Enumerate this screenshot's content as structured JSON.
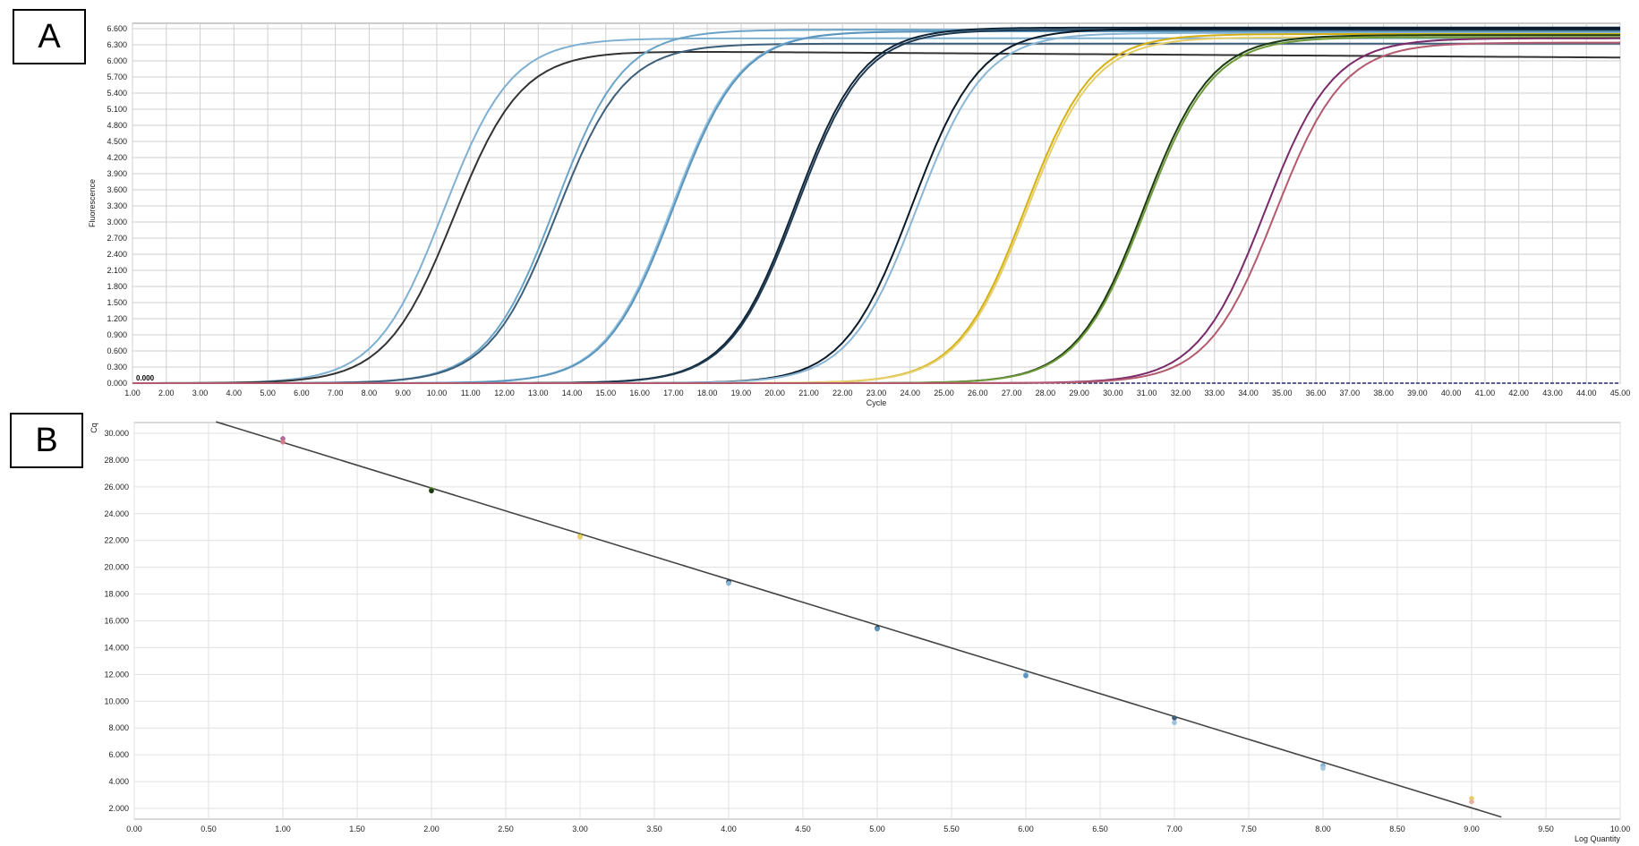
{
  "panels": {
    "a_label": "A",
    "b_label": "B"
  },
  "chart_data": [
    {
      "type": "line",
      "panel": "A",
      "xlabel": "Cycle",
      "ylabel": "Fluorescence",
      "xlim": [
        1,
        45
      ],
      "ylim": [
        0,
        6.7
      ],
      "x_ticks": [
        1,
        2,
        3,
        4,
        5,
        6,
        7,
        8,
        9,
        10,
        11,
        12,
        13,
        14,
        15,
        16,
        17,
        18,
        19,
        20,
        21,
        22,
        23,
        24,
        25,
        26,
        27,
        28,
        29,
        30,
        31,
        32,
        33,
        34,
        35,
        36,
        37,
        38,
        39,
        40,
        41,
        42,
        43,
        44,
        45
      ],
      "x_tick_labels": [
        "1.00",
        "2.00",
        "3.00",
        "4.00",
        "5.00",
        "6.00",
        "7.00",
        "8.00",
        "9.00",
        "10.00",
        "11.00",
        "12.00",
        "13.00",
        "14.00",
        "15.00",
        "16.00",
        "17.00",
        "18.00",
        "19.00",
        "20.00",
        "21.00",
        "22.00",
        "23.00",
        "24.00",
        "25.00",
        "26.00",
        "27.00",
        "28.00",
        "29.00",
        "30.00",
        "31.00",
        "32.00",
        "33.00",
        "34.00",
        "35.00",
        "36.00",
        "37.00",
        "38.00",
        "39.00",
        "40.00",
        "41.00",
        "42.00",
        "43.00",
        "44.00",
        "45.00"
      ],
      "y_ticks": [
        0,
        0.3,
        0.6,
        0.9,
        1.2,
        1.5,
        1.8,
        2.1,
        2.4,
        2.7,
        3.0,
        3.3,
        3.6,
        3.9,
        4.2,
        4.5,
        4.8,
        5.1,
        5.4,
        5.7,
        6.0,
        6.3,
        6.6
      ],
      "y_tick_labels": [
        "0.000",
        "0.300",
        "0.600",
        "0.900",
        "1.200",
        "1.500",
        "1.800",
        "2.100",
        "2.400",
        "2.700",
        "3.000",
        "3.300",
        "3.600",
        "3.900",
        "4.200",
        "4.500",
        "4.800",
        "5.100",
        "5.400",
        "5.700",
        "6.000",
        "6.300",
        "6.600"
      ],
      "threshold": {
        "value": 0.0,
        "label": "0.000",
        "color": "#2b2b6b"
      },
      "grid": true,
      "series": [
        {
          "midpoint": 10.2,
          "plateau": 6.42,
          "slope": 1.0,
          "drift": 0.0,
          "color": "#7fb0d2"
        },
        {
          "midpoint": 10.5,
          "plateau": 6.18,
          "slope": 1.0,
          "drift": -0.004,
          "color": "#333333"
        },
        {
          "midpoint": 13.5,
          "plateau": 6.58,
          "slope": 1.0,
          "drift": 0.0,
          "color": "#6aa3c8"
        },
        {
          "midpoint": 13.55,
          "plateau": 6.32,
          "slope": 1.0,
          "drift": 0.0,
          "color": "#3d5f7a"
        },
        {
          "midpoint": 16.95,
          "plateau": 6.55,
          "slope": 1.0,
          "drift": 0.0,
          "color": "#8fc0de"
        },
        {
          "midpoint": 17.0,
          "plateau": 6.55,
          "slope": 1.0,
          "drift": 0.0,
          "color": "#5b95bd"
        },
        {
          "midpoint": 20.6,
          "plateau": 6.62,
          "slope": 1.0,
          "drift": 0.0,
          "color": "#0f2437"
        },
        {
          "midpoint": 20.65,
          "plateau": 6.58,
          "slope": 1.0,
          "drift": 0.0,
          "color": "#1d3a52"
        },
        {
          "midpoint": 24.05,
          "plateau": 6.6,
          "slope": 1.0,
          "drift": 0.0,
          "color": "#0a1a28"
        },
        {
          "midpoint": 24.2,
          "plateau": 6.52,
          "slope": 1.0,
          "drift": 0.0,
          "color": "#8ab6d6"
        },
        {
          "midpoint": 27.4,
          "plateau": 6.5,
          "slope": 1.0,
          "drift": 0.0,
          "color": "#d4b012"
        },
        {
          "midpoint": 27.45,
          "plateau": 6.44,
          "slope": 1.0,
          "drift": 0.0,
          "color": "#e6cf6a"
        },
        {
          "midpoint": 30.9,
          "plateau": 6.48,
          "slope": 1.0,
          "drift": 0.0,
          "color": "#1b3a10"
        },
        {
          "midpoint": 30.95,
          "plateau": 6.44,
          "slope": 1.0,
          "drift": 0.0,
          "color": "#6f9a3a"
        },
        {
          "midpoint": 34.5,
          "plateau": 6.42,
          "slope": 1.0,
          "drift": 0.0,
          "color": "#7a2a6a"
        },
        {
          "midpoint": 34.8,
          "plateau": 6.34,
          "slope": 1.0,
          "drift": 0.0,
          "color": "#b45a6e"
        }
      ]
    },
    {
      "type": "scatter",
      "panel": "B",
      "xlabel": "Log Quantity",
      "ylabel": "Cq",
      "xlim": [
        0,
        10
      ],
      "ylim": [
        1.2,
        30.8
      ],
      "x_ticks": [
        0,
        0.5,
        1,
        1.5,
        2,
        2.5,
        3,
        3.5,
        4,
        4.5,
        5,
        5.5,
        6,
        6.5,
        7,
        7.5,
        8,
        8.5,
        9,
        9.5,
        10
      ],
      "x_tick_labels": [
        "0.00",
        "0.50",
        "1.00",
        "1.50",
        "2.00",
        "2.50",
        "3.00",
        "3.50",
        "4.00",
        "4.50",
        "5.00",
        "5.50",
        "6.00",
        "6.50",
        "7.00",
        "7.50",
        "8.00",
        "8.50",
        "9.00",
        "9.50",
        "10.00"
      ],
      "y_ticks": [
        2,
        4,
        6,
        8,
        10,
        12,
        14,
        16,
        18,
        20,
        22,
        24,
        26,
        28,
        30
      ],
      "y_tick_labels": [
        "2.000",
        "4.000",
        "6.000",
        "8.000",
        "10.000",
        "12.000",
        "14.000",
        "16.000",
        "18.000",
        "20.000",
        "22.000",
        "24.000",
        "26.000",
        "28.000",
        "30.000"
      ],
      "grid": true,
      "regression": {
        "slope": -3.41,
        "intercept": 32.73,
        "x_range": [
          0.55,
          9.2
        ],
        "color": "#444444"
      },
      "points": [
        {
          "x": 1.0,
          "y": 29.6,
          "color": "#b06a9a"
        },
        {
          "x": 1.0,
          "y": 29.35,
          "color": "#d07a8a"
        },
        {
          "x": 2.0,
          "y": 25.8,
          "color": "#6f9a3a"
        },
        {
          "x": 2.0,
          "y": 25.7,
          "color": "#1b3a10"
        },
        {
          "x": 3.0,
          "y": 22.3,
          "color": "#d4b012"
        },
        {
          "x": 3.0,
          "y": 22.25,
          "color": "#e6cf6a"
        },
        {
          "x": 4.0,
          "y": 18.9,
          "color": "#1d3a52"
        },
        {
          "x": 4.0,
          "y": 18.8,
          "color": "#8ab6d6"
        },
        {
          "x": 5.0,
          "y": 15.45,
          "color": "#0f2437"
        },
        {
          "x": 5.0,
          "y": 15.4,
          "color": "#5b95bd"
        },
        {
          "x": 6.0,
          "y": 12.0,
          "color": "#8fc0de"
        },
        {
          "x": 6.0,
          "y": 11.9,
          "color": "#5b95bd"
        },
        {
          "x": 7.0,
          "y": 8.75,
          "color": "#3d5f7a"
        },
        {
          "x": 7.0,
          "y": 8.4,
          "color": "#9cc4e0"
        },
        {
          "x": 8.0,
          "y": 5.2,
          "color": "#7fb0d2"
        },
        {
          "x": 8.0,
          "y": 5.0,
          "color": "#a8c8e0"
        },
        {
          "x": 9.0,
          "y": 2.75,
          "color": "#e6cf6a"
        },
        {
          "x": 9.0,
          "y": 2.5,
          "color": "#e8b0a0"
        }
      ]
    }
  ]
}
